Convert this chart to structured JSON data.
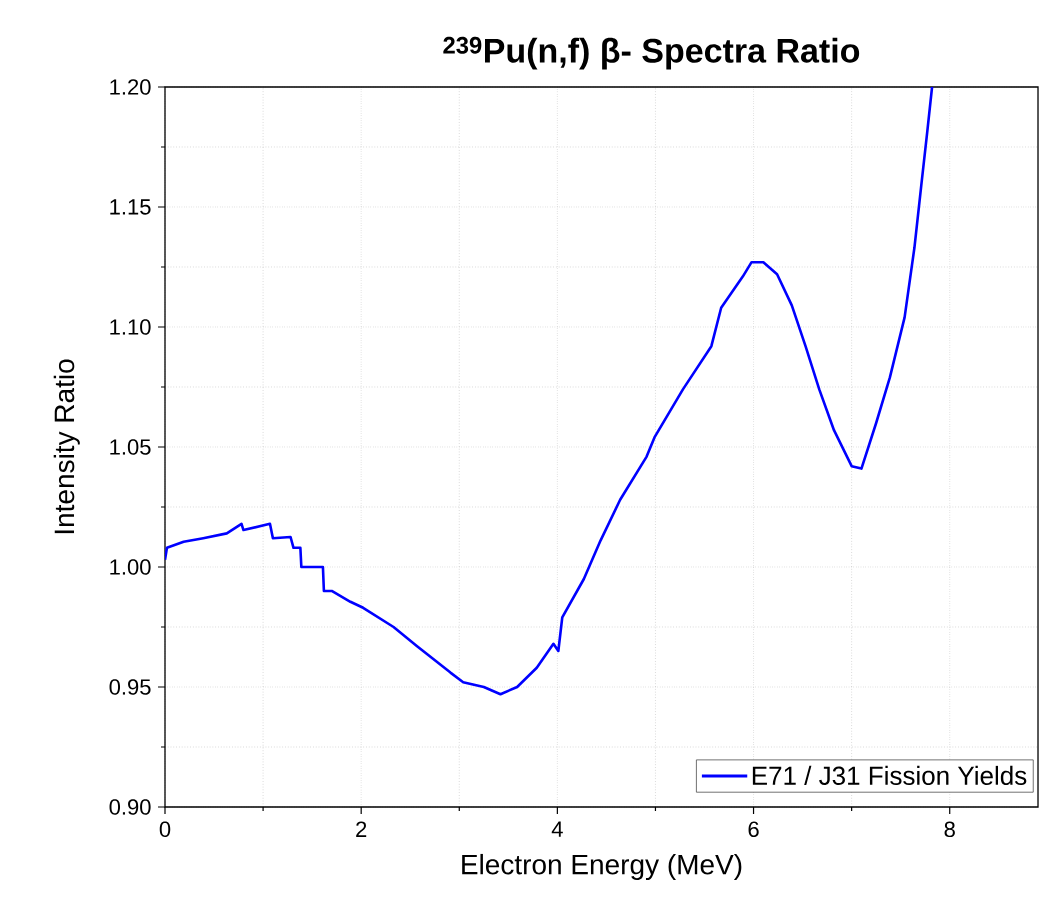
{
  "chart_data": {
    "type": "line",
    "title": "$^{239}$Pu(n,f) β- Spectra Ratio",
    "xlabel": "Electron Energy (MeV)",
    "ylabel": "Intensity Ratio",
    "xlim": [
      0,
      8.9
    ],
    "ylim": [
      0.9,
      1.2
    ],
    "xticks": [
      0,
      2,
      4,
      6,
      8
    ],
    "yticks": [
      {
        "value": 0.9,
        "label": "0.90"
      },
      {
        "value": 0.95,
        "label": "0.95"
      },
      {
        "value": 1.0,
        "label": "1.00"
      },
      {
        "value": 1.05,
        "label": "1.05"
      },
      {
        "value": 1.1,
        "label": "1.10"
      },
      {
        "value": 1.15,
        "label": "1.15"
      },
      {
        "value": 1.2,
        "label": "1.20"
      }
    ],
    "grid": true,
    "legend": "bottom right",
    "marker": "none",
    "line_style": "solid",
    "x": [
      0,
      0.02,
      0.19,
      0.39,
      0.63,
      0.78,
      0.8,
      1.07,
      1.1,
      1.28,
      1.31,
      1.38,
      1.39,
      1.61,
      1.62,
      1.7,
      1.89,
      2.02,
      2.33,
      2.57,
      2.91,
      3.04,
      3.25,
      3.42,
      3.59,
      3.79,
      3.96,
      4.01,
      4.05,
      4.27,
      4.44,
      4.64,
      4.91,
      4.99,
      5.28,
      5.57,
      5.67,
      5.89,
      5.98,
      6.1,
      6.24,
      6.39,
      6.53,
      6.67,
      6.82,
      7.0,
      7.1,
      7.25,
      7.39,
      7.54,
      7.64,
      7.71,
      7.77,
      7.82
    ],
    "series": [
      {
        "name": "E71 / J31 Fission Yields",
        "color": "#0000ff",
        "values": [
          1.003,
          1.008,
          1.0105,
          1.012,
          1.014,
          1.018,
          1.0154,
          1.018,
          1.012,
          1.0125,
          1.008,
          1.008,
          1.0,
          1.0,
          0.99,
          0.99,
          0.9855,
          0.983,
          0.975,
          0.967,
          0.956,
          0.952,
          0.95,
          0.947,
          0.95,
          0.958,
          0.968,
          0.965,
          0.979,
          0.995,
          1.011,
          1.028,
          1.046,
          1.054,
          1.074,
          1.092,
          1.108,
          1.121,
          1.127,
          1.127,
          1.122,
          1.109,
          1.092,
          1.074,
          1.057,
          1.042,
          1.041,
          1.06,
          1.079,
          1.104,
          1.133,
          1.159,
          1.181,
          1.2
        ]
      }
    ]
  }
}
